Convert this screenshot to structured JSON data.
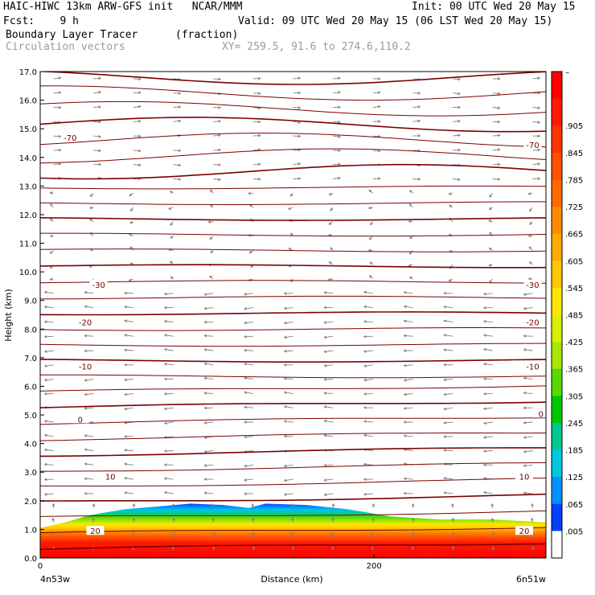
{
  "header": {
    "line1_left": "HAIC-HIWC 13km ARW-GFS init   NCAR/MMM",
    "line1_right": "Init: 00 UTC Wed 20 May 15",
    "line2_left": "Fcst:    9 h",
    "line2_right": "Valid: 09 UTC Wed 20 May 15 (06 LST Wed 20 May 15)",
    "line3_left": "Boundary Layer Tracer",
    "line3_units": "(fraction)",
    "line4_left": "Circulation vectors",
    "line4_xy": "XY= 259.5, 91.6 to 274.6,110.2"
  },
  "chart_data": {
    "type": "heatmap",
    "xlabel": "Distance (km)",
    "ylabel": "Height (km)",
    "xlim": [
      0,
      303
    ],
    "ylim": [
      0,
      17
    ],
    "x_ticks": [
      {
        "value": 0,
        "label": "0"
      },
      {
        "value": 200,
        "label": "200"
      }
    ],
    "x_endpoint_labels": {
      "left": "4n53w",
      "right": "6n51w"
    },
    "y_ticks": [
      "0.0",
      "1.0",
      "2.0",
      "3.0",
      "4.0",
      "5.0",
      "6.0",
      "7.0",
      "8.0",
      "9.0",
      "10.0",
      "11.0",
      "12.0",
      "13.0",
      "14.0",
      "15.0",
      "16.0",
      "17.0"
    ],
    "colorbar": {
      "top_label": "–",
      "labels": [
        ".905",
        ".845",
        ".785",
        ".725",
        ".665",
        ".605",
        ".545",
        ".485",
        ".425",
        ".365",
        ".305",
        ".245",
        ".185",
        ".125",
        ".065",
        ".005"
      ],
      "colors": [
        "#ff0000",
        "#ff1a00",
        "#ff3300",
        "#ff5000",
        "#ff6a00",
        "#ff8a00",
        "#ffaa00",
        "#ffc800",
        "#ffe600",
        "#d8f000",
        "#a8e800",
        "#5ad800",
        "#00c800",
        "#00c890",
        "#00c8e0",
        "#0090ff",
        "#0040ff",
        "#ffffff"
      ]
    },
    "tracer_top_km": [
      {
        "x": 0,
        "top": 1.05
      },
      {
        "x": 15,
        "top": 1.25
      },
      {
        "x": 30,
        "top": 1.5
      },
      {
        "x": 50,
        "top": 1.7
      },
      {
        "x": 70,
        "top": 1.8
      },
      {
        "x": 90,
        "top": 1.9
      },
      {
        "x": 110,
        "top": 1.85
      },
      {
        "x": 125,
        "top": 1.75
      },
      {
        "x": 135,
        "top": 1.9
      },
      {
        "x": 160,
        "top": 1.85
      },
      {
        "x": 185,
        "top": 1.7
      },
      {
        "x": 210,
        "top": 1.45
      },
      {
        "x": 240,
        "top": 1.35
      },
      {
        "x": 270,
        "top": 1.35
      },
      {
        "x": 303,
        "top": 1.25
      }
    ],
    "contour_labels": [
      {
        "label": "-70",
        "x": 18,
        "y": 14.7,
        "side": "left"
      },
      {
        "label": "-70",
        "x": 295,
        "y": 14.45,
        "side": "right"
      },
      {
        "label": "-30",
        "x": 35,
        "y": 9.55,
        "side": "left"
      },
      {
        "label": "-30",
        "x": 295,
        "y": 9.55,
        "side": "right"
      },
      {
        "label": "-20",
        "x": 27,
        "y": 8.25,
        "side": "left"
      },
      {
        "label": "-20",
        "x": 295,
        "y": 8.25,
        "side": "right"
      },
      {
        "label": "-10",
        "x": 27,
        "y": 6.7,
        "side": "left"
      },
      {
        "label": "-10",
        "x": 295,
        "y": 6.7,
        "side": "right"
      },
      {
        "label": "0",
        "x": 24,
        "y": 4.85,
        "side": "left"
      },
      {
        "label": "0",
        "x": 300,
        "y": 5.05,
        "side": "right"
      },
      {
        "label": "10",
        "x": 42,
        "y": 2.85,
        "side": "left"
      },
      {
        "label": "10",
        "x": 290,
        "y": 2.85,
        "side": "right"
      },
      {
        "label": "20",
        "x": 33,
        "y": 0.95,
        "side": "left"
      },
      {
        "label": "20",
        "x": 290,
        "y": 0.95,
        "side": "right"
      }
    ]
  },
  "colors": {
    "contour": "#7a0000",
    "vector": "#808080",
    "frame": "#000000"
  }
}
